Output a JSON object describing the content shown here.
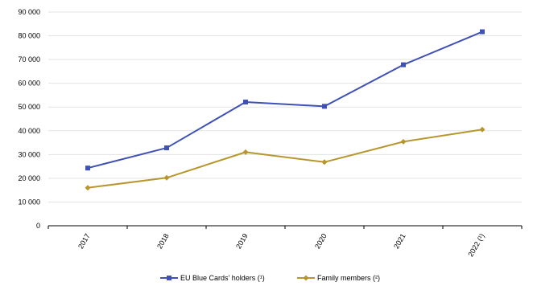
{
  "chart_data": {
    "type": "line",
    "categories": [
      "2017",
      "2018",
      "2019",
      "2020",
      "2021",
      "2022 (¹)"
    ],
    "y_tick_labels": [
      "0",
      "10 000",
      "20 000",
      "30 000",
      "40 000",
      "50 000",
      "60 000",
      "70 000",
      "80 000",
      "90 000"
    ],
    "ylim": [
      0,
      90000
    ],
    "grid": true,
    "legend_position": "bottom",
    "series": [
      {
        "name": "EU Blue Cards' holders (¹)",
        "color": "#3F51B5",
        "marker": "square",
        "values": [
          24300,
          32800,
          52100,
          50300,
          67800,
          81700
        ]
      },
      {
        "name": "Family members (²)",
        "color": "#B8962E",
        "marker": "diamond",
        "values": [
          16000,
          20200,
          31000,
          26800,
          35400,
          40500
        ]
      }
    ]
  }
}
